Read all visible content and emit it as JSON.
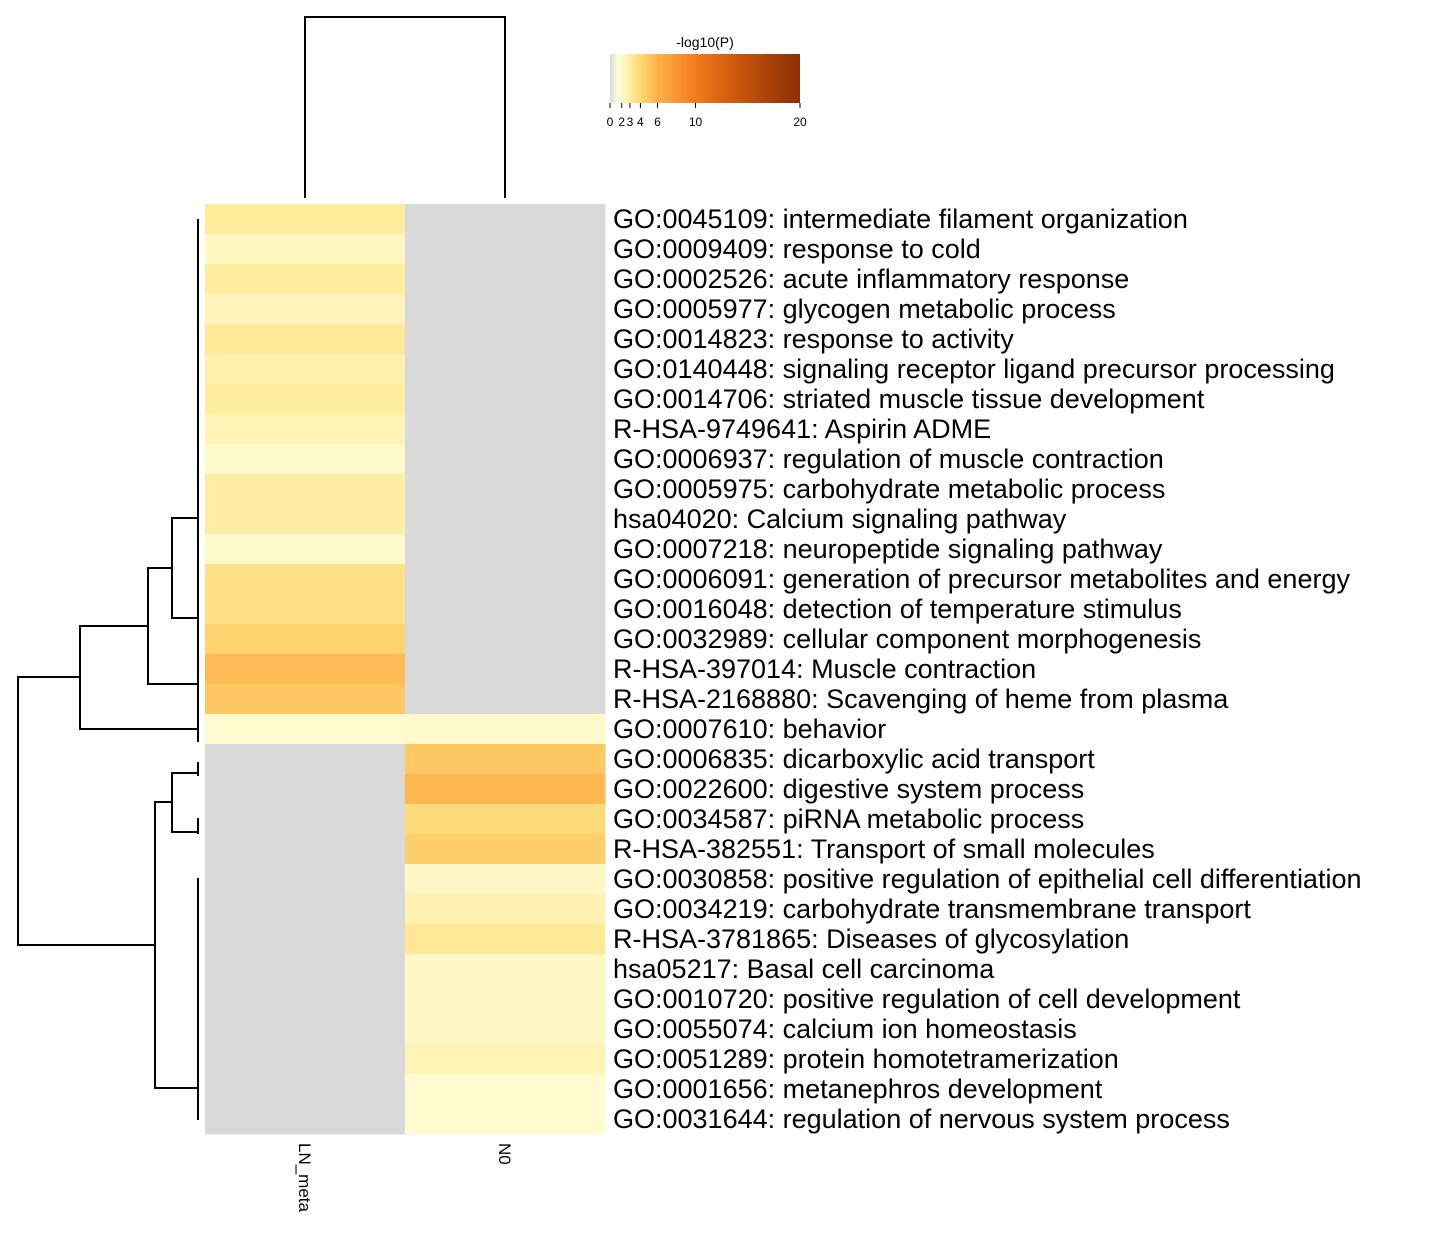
{
  "chart_data": {
    "type": "heatmap",
    "colorbar": {
      "title": "-log10(P)",
      "tick_labels": [
        "0",
        "2",
        "3",
        "4",
        "6",
        "10",
        "20"
      ],
      "range": [
        0,
        20
      ],
      "colors": [
        "#d9d9d9",
        "#ffffe0",
        "#ffeda0",
        "#fed976",
        "#feb24c",
        "#f37b1d",
        "#c8560c",
        "#8b2f04"
      ]
    },
    "columns": [
      "LN_meta",
      "N0"
    ],
    "missing_color": "#d9d9d9",
    "rows": [
      {
        "label": "GO:0045109: intermediate filament organization",
        "values": [
          3.1,
          null
        ]
      },
      {
        "label": "GO:0009409: response to cold",
        "values": [
          2.2,
          null
        ]
      },
      {
        "label": "GO:0002526: acute inflammatory response",
        "values": [
          3.0,
          null
        ]
      },
      {
        "label": "GO:0005977: glycogen metabolic process",
        "values": [
          2.4,
          null
        ]
      },
      {
        "label": "GO:0014823: response to activity",
        "values": [
          3.2,
          null
        ]
      },
      {
        "label": "GO:0140448: signaling receptor ligand precursor processing",
        "values": [
          2.7,
          null
        ]
      },
      {
        "label": "GO:0014706: striated muscle tissue development",
        "values": [
          3.0,
          null
        ]
      },
      {
        "label": "R-HSA-9749641: Aspirin ADME",
        "values": [
          2.5,
          null
        ]
      },
      {
        "label": "GO:0006937: regulation of muscle contraction",
        "values": [
          2.0,
          null
        ]
      },
      {
        "label": "GO:0005975: carbohydrate metabolic process",
        "values": [
          2.9,
          null
        ]
      },
      {
        "label": "hsa04020: Calcium signaling pathway",
        "values": [
          2.9,
          null
        ]
      },
      {
        "label": "GO:0007218: neuropeptide signaling pathway",
        "values": [
          2.0,
          null
        ]
      },
      {
        "label": "GO:0006091: generation of precursor metabolites and energy",
        "values": [
          3.6,
          null
        ]
      },
      {
        "label": "GO:0016048: detection of temperature stimulus",
        "values": [
          3.6,
          null
        ]
      },
      {
        "label": "GO:0032989: cellular component morphogenesis",
        "values": [
          4.3,
          null
        ]
      },
      {
        "label": "R-HSA-397014: Muscle contraction",
        "values": [
          5.6,
          null
        ]
      },
      {
        "label": "R-HSA-2168880: Scavenging of heme from plasma",
        "values": [
          4.9,
          null
        ]
      },
      {
        "label": "GO:0007610: behavior",
        "values": [
          1.9,
          2.0
        ]
      },
      {
        "label": "GO:0006835: dicarboxylic acid transport",
        "values": [
          null,
          4.8
        ]
      },
      {
        "label": "GO:0022600: digestive system process",
        "values": [
          null,
          5.7
        ]
      },
      {
        "label": "GO:0034587: piRNA metabolic process",
        "values": [
          null,
          3.9
        ]
      },
      {
        "label": "R-HSA-382551: Transport of small molecules",
        "values": [
          null,
          4.5
        ]
      },
      {
        "label": "GO:0030858: positive regulation of epithelial cell differentiation",
        "values": [
          null,
          2.1
        ]
      },
      {
        "label": "GO:0034219: carbohydrate transmembrane transport",
        "values": [
          null,
          2.6
        ]
      },
      {
        "label": "R-HSA-3781865: Diseases of glycosylation",
        "values": [
          null,
          3.2
        ]
      },
      {
        "label": "hsa05217: Basal cell carcinoma",
        "values": [
          null,
          2.1
        ]
      },
      {
        "label": "GO:0010720: positive regulation of cell development",
        "values": [
          null,
          2.1
        ]
      },
      {
        "label": "GO:0055074: calcium ion homeostasis",
        "values": [
          null,
          2.1
        ]
      },
      {
        "label": "GO:0051289: protein homotetramerization",
        "values": [
          null,
          2.5
        ]
      },
      {
        "label": "GO:0001656: metanephros development",
        "values": [
          null,
          1.9
        ]
      },
      {
        "label": "GO:0031644: regulation of nervous system process",
        "values": [
          null,
          1.9
        ]
      }
    ]
  }
}
